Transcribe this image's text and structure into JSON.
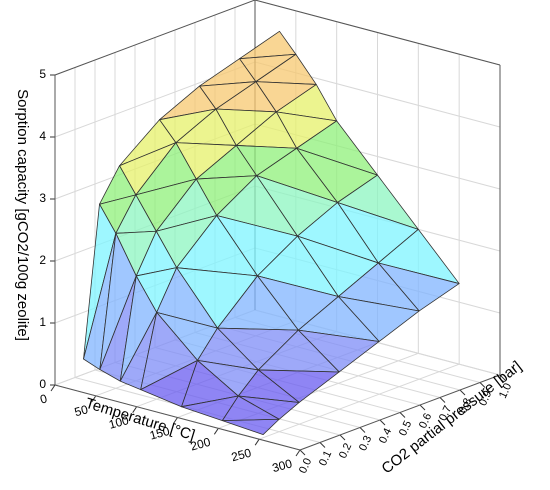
{
  "chart_data": {
    "type": "surface3d",
    "xlabel": "Temperature [°C]",
    "ylabel": "CO2 partial pressure [bar]",
    "zlabel": "Sorption capacity [gCO2/100g zeolite]",
    "x": [
      30,
      50,
      75,
      100,
      150,
      200,
      250
    ],
    "y": [
      0.02,
      0.1,
      0.2,
      0.4,
      0.6,
      0.8,
      1.0
    ],
    "z": [
      [
        0.5,
        2.9,
        3.4,
        3.9,
        4.2,
        4.4,
        4.6
      ],
      [
        0.4,
        2.5,
        3.0,
        3.6,
        3.9,
        4.1,
        4.3
      ],
      [
        0.3,
        1.9,
        2.5,
        3.1,
        3.4,
        3.7,
        3.9
      ],
      [
        0.25,
        1.4,
        2.0,
        2.6,
        3.0,
        3.2,
        3.4
      ],
      [
        0.15,
        0.8,
        1.2,
        1.8,
        2.2,
        2.5,
        2.7
      ],
      [
        0.1,
        0.4,
        0.7,
        1.1,
        1.4,
        1.7,
        2.0
      ],
      [
        0.05,
        0.2,
        0.35,
        0.6,
        0.85,
        1.1,
        1.3
      ]
    ],
    "xlim": [
      0,
      300
    ],
    "xticks": [
      0,
      50,
      100,
      150,
      200,
      250,
      300
    ],
    "ylim": [
      0,
      1
    ],
    "yticks": [
      {
        "value": 0,
        "label": "0.0"
      },
      {
        "value": 0.1,
        "label": "0.1"
      },
      {
        "value": 0.2,
        "label": "0.2"
      },
      {
        "value": 0.3,
        "label": "0.3"
      },
      {
        "value": 0.4,
        "label": "0.4"
      },
      {
        "value": 0.5,
        "label": "0.5"
      },
      {
        "value": 0.6,
        "label": "0.6"
      },
      {
        "value": 0.7,
        "label": "0.7"
      },
      {
        "value": 0.8,
        "label": "0.8"
      },
      {
        "value": 0.9,
        "label": "0.9"
      },
      {
        "value": 1,
        "label": "1.0"
      }
    ],
    "zlim": [
      0,
      5
    ],
    "zticks": [
      0,
      1,
      2,
      3,
      4,
      5
    ],
    "colormap": [
      "#6a5cf0",
      "#7d8cf7",
      "#80b4ff",
      "#7ef4ff",
      "#8cf5c0",
      "#8ff07a",
      "#e6f06a",
      "#f7c870",
      "#f28a8a"
    ],
    "grid": true
  }
}
